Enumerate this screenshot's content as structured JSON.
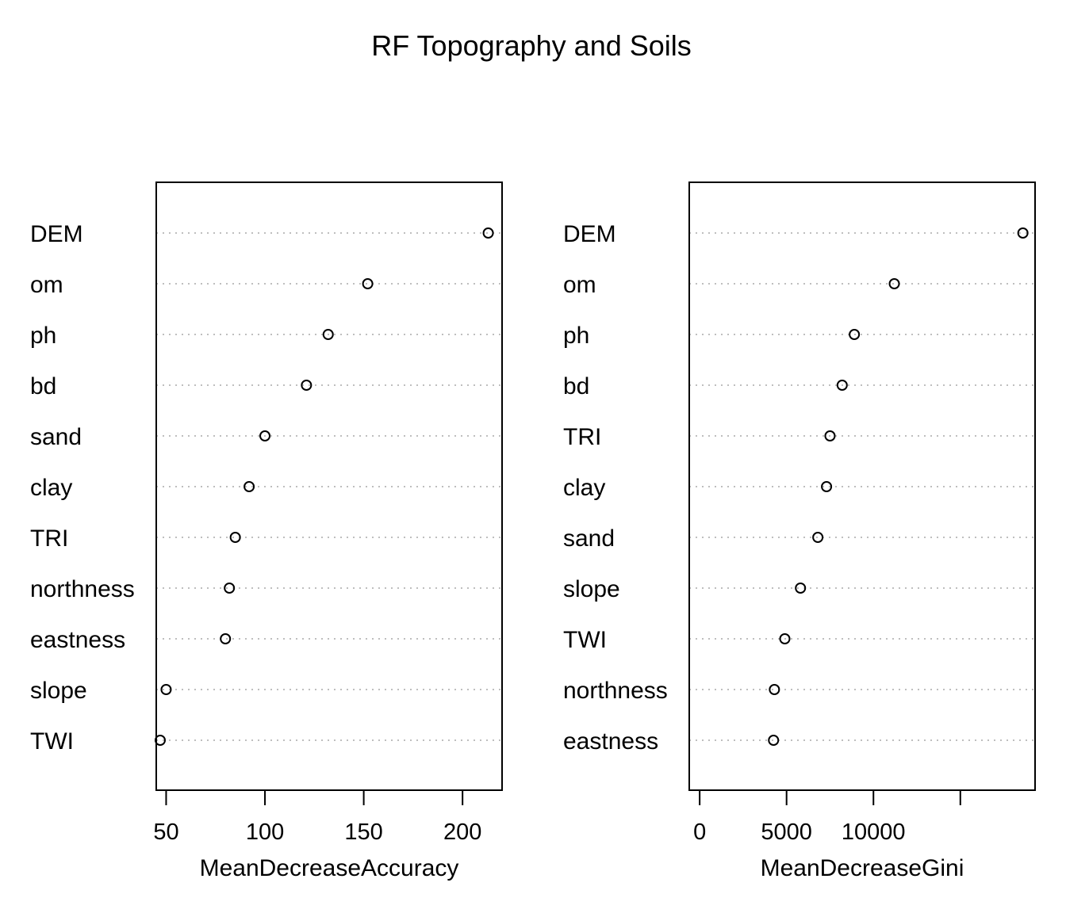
{
  "title": "RF Topography and Soils",
  "chart_data": [
    {
      "type": "scatter",
      "subtype": "dotchart",
      "title": "",
      "xlabel": "MeanDecreaseAccuracy",
      "ylabel": "",
      "xlim": [
        45,
        220
      ],
      "xticks": [
        50,
        100,
        150,
        200
      ],
      "xtick_labels": [
        "50",
        "100",
        "150",
        "200"
      ],
      "grid": "dotted horizontal guide lines",
      "categories": [
        "DEM",
        "om",
        "ph",
        "bd",
        "sand",
        "clay",
        "TRI",
        "northness",
        "eastness",
        "slope",
        "TWI"
      ],
      "values": [
        213,
        152,
        132,
        121,
        100,
        92,
        85,
        82,
        80,
        50,
        47
      ]
    },
    {
      "type": "scatter",
      "subtype": "dotchart",
      "title": "",
      "xlabel": "MeanDecreaseGini",
      "ylabel": "",
      "xlim": [
        -600,
        19300
      ],
      "xticks": [
        0,
        5000,
        10000,
        15000
      ],
      "xtick_labels": [
        "0",
        "5000",
        "10000",
        ""
      ],
      "grid": "dotted horizontal guide lines",
      "categories": [
        "DEM",
        "om",
        "ph",
        "bd",
        "TRI",
        "clay",
        "sand",
        "slope",
        "TWI",
        "northness",
        "eastness"
      ],
      "values": [
        18600,
        11200,
        8900,
        8200,
        7500,
        7300,
        6800,
        5800,
        4900,
        4300,
        4250
      ]
    }
  ],
  "colors": {
    "points": "#000000",
    "grid": "#bebebe",
    "frame": "#000000"
  }
}
